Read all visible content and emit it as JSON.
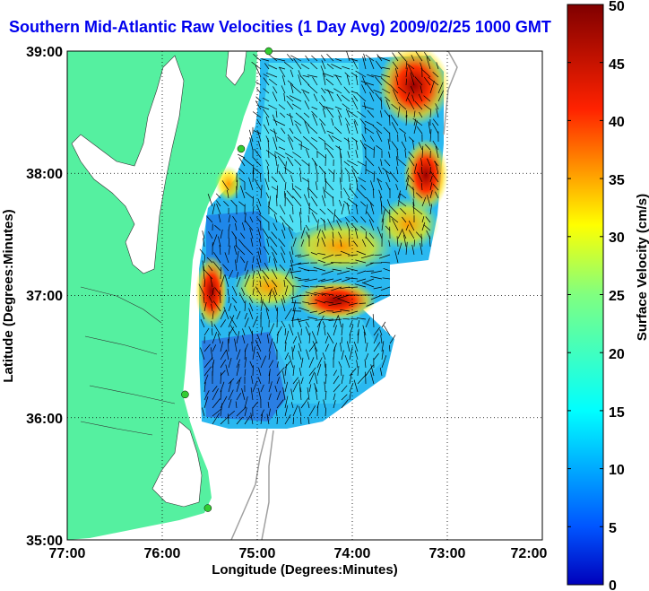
{
  "title": "Southern Mid-Atlantic Raw Velocities (1 Day Avg) 2009/02/25 1000 GMT",
  "axes": {
    "xlabel": "Longitude (Degrees:Minutes)",
    "ylabel": "Latitude (Degrees:Minutes)",
    "x_ticks": [
      "77:00",
      "76:00",
      "75:00",
      "74:00",
      "73:00",
      "72:00"
    ],
    "y_ticks": [
      "39:00",
      "38:00",
      "37:00",
      "36:00",
      "35:00"
    ]
  },
  "colorbar": {
    "label": "Surface Velocity (cm/s)",
    "ticks": [
      "0",
      "5",
      "10",
      "15",
      "20",
      "25",
      "30",
      "35",
      "40",
      "45",
      "50"
    ],
    "range": [
      0,
      50
    ],
    "colormap": "jet"
  },
  "chart_data": {
    "type": "heatmap",
    "xlim": [
      -77,
      -72
    ],
    "ylim": [
      35,
      39
    ],
    "grid": true,
    "colors": {
      "land": "#55f0a0",
      "water": "#ffffff",
      "vector": "#000000",
      "station": "#33cc33",
      "bathymetry": "#a0a0a0"
    },
    "stations": [
      {
        "lon": -74.88,
        "lat": 39.0
      },
      {
        "lon": -75.17,
        "lat": 38.2
      },
      {
        "lon": -75.76,
        "lat": 36.19
      },
      {
        "lon": -75.52,
        "lat": 35.26
      }
    ],
    "high_velocity_zones": [
      {
        "lon": -73.4,
        "lat": 38.7,
        "speed": 48
      },
      {
        "lon": -73.2,
        "lat": 37.8,
        "speed": 40
      },
      {
        "lon": -73.9,
        "lat": 36.95,
        "speed": 48
      },
      {
        "lon": -75.45,
        "lat": 36.95,
        "speed": 40
      },
      {
        "lon": -74.2,
        "lat": 37.3,
        "speed": 30
      }
    ]
  }
}
